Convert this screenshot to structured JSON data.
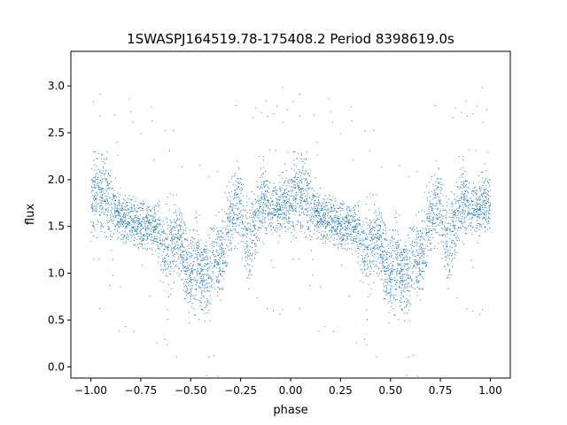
{
  "chart_data": {
    "type": "scatter",
    "title": "1SWASPJ164519.78-175408.2 Period 8398619.0s",
    "xlabel": "phase",
    "ylabel": "flux",
    "xlim": [
      -1.1,
      1.1
    ],
    "ylim": [
      -0.12,
      3.37
    ],
    "xticks": [
      -1.0,
      -0.75,
      -0.5,
      -0.25,
      0.0,
      0.25,
      0.5,
      0.75,
      1.0
    ],
    "xtick_labels": [
      "−1.00",
      "−0.75",
      "−0.50",
      "−0.25",
      "0.00",
      "0.25",
      "0.50",
      "0.75",
      "1.00"
    ],
    "yticks": [
      0.0,
      0.5,
      1.0,
      1.5,
      2.0,
      2.5,
      3.0
    ],
    "ytick_labels": [
      "0.0",
      "0.5",
      "1.0",
      "1.5",
      "2.0",
      "2.5",
      "3.0"
    ],
    "grid": false,
    "marker_color": "#1f77b4",
    "series": [
      {
        "x": [
          0.0,
          0.02,
          0.04,
          0.06,
          0.08,
          0.1,
          0.12,
          0.14,
          0.16,
          0.18,
          0.2,
          0.22,
          0.24,
          0.26,
          0.28,
          0.3,
          0.32,
          0.34,
          0.36,
          0.38,
          0.4,
          0.42,
          0.44,
          0.46,
          0.48,
          0.5,
          0.52,
          0.54,
          0.56,
          0.58,
          0.6,
          0.62,
          0.64,
          0.66,
          0.68,
          0.7,
          0.72,
          0.74,
          0.76,
          0.78,
          0.8,
          0.82,
          0.84,
          0.86,
          0.88,
          0.9,
          0.92,
          0.94,
          0.96,
          0.98,
          1.0
        ],
        "y": [
          1.75,
          1.8,
          1.85,
          1.85,
          1.8,
          1.7,
          1.65,
          1.62,
          1.6,
          1.58,
          1.6,
          1.55,
          1.52,
          1.5,
          1.5,
          1.5,
          1.5,
          1.4,
          1.3,
          1.25,
          1.3,
          1.4,
          1.4,
          1.25,
          1.05,
          0.95,
          1.05,
          1.1,
          1.0,
          0.95,
          1.05,
          1.2,
          1.1,
          1.2,
          1.35,
          1.55,
          1.7,
          1.75,
          1.6,
          1.4,
          1.35,
          1.5,
          1.7,
          1.8,
          1.75,
          1.7,
          1.7,
          1.72,
          1.75,
          1.75,
          1.75
        ],
        "y_spread": [
          0.2,
          0.2,
          0.22,
          0.22,
          0.2,
          0.18,
          0.15,
          0.13,
          0.12,
          0.12,
          0.12,
          0.12,
          0.12,
          0.12,
          0.12,
          0.12,
          0.12,
          0.15,
          0.18,
          0.2,
          0.2,
          0.2,
          0.2,
          0.22,
          0.22,
          0.22,
          0.22,
          0.2,
          0.2,
          0.2,
          0.2,
          0.2,
          0.2,
          0.2,
          0.2,
          0.2,
          0.2,
          0.2,
          0.22,
          0.22,
          0.2,
          0.2,
          0.18,
          0.18,
          0.18,
          0.15,
          0.15,
          0.15,
          0.15,
          0.15,
          0.15
        ],
        "mirrored_to_negative_phase": true
      }
    ]
  }
}
